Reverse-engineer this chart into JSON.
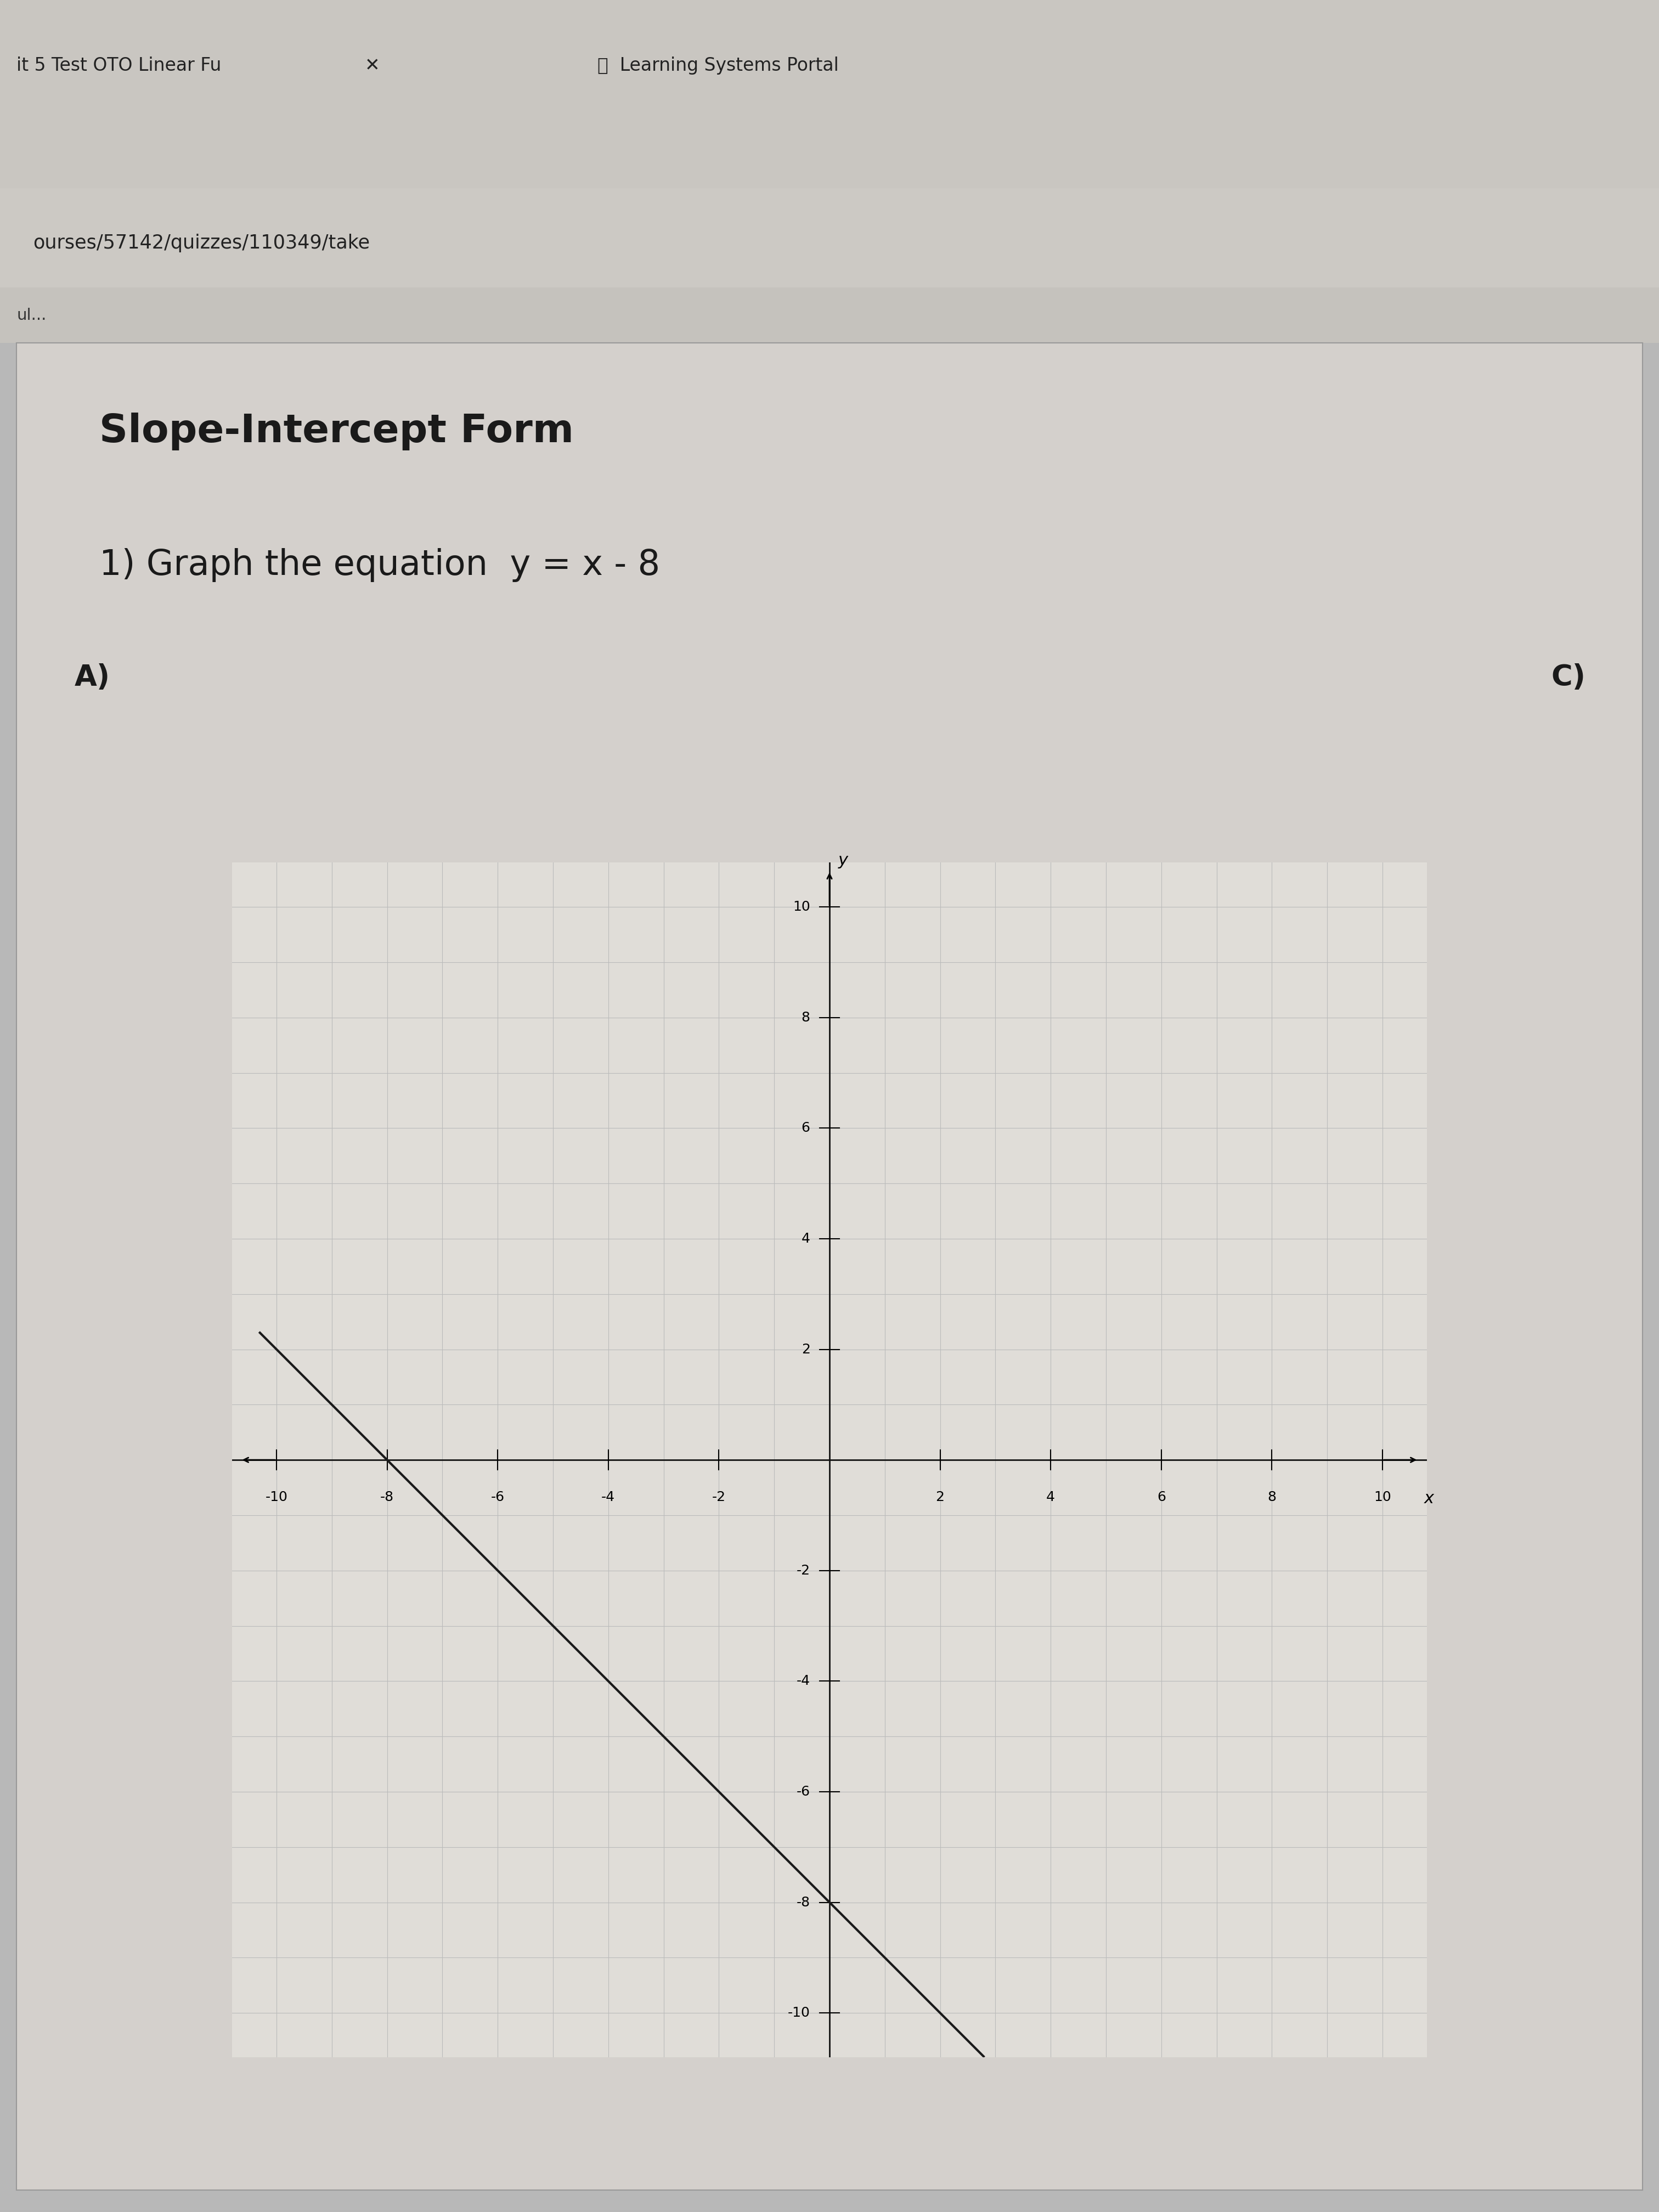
{
  "title": "Slope-Intercept Form",
  "subtitle_part1": "1) Graph the equation  y = x - 8",
  "label_A": "A)",
  "label_C": "C)",
  "slope": -1,
  "intercept": -8,
  "xlim": [
    -10,
    10
  ],
  "ylim": [
    -10,
    10
  ],
  "x_tick_step": 2,
  "y_tick_step": 2,
  "grid_minor_step": 1,
  "line_color": "#1a1a1a",
  "grid_color": "#bbbbbb",
  "axis_color": "#111111",
  "graph_bg": "#e0ddd8",
  "page_bg": "#b8b8b8",
  "content_bg": "#d4d0cc",
  "browser_tab_bg": "#d0cdc8",
  "title_fontsize": 52,
  "subtitle_fontsize": 46,
  "label_fontsize": 38,
  "tick_fontsize": 18,
  "axis_label_fontsize": 22,
  "browser_text_fontsize": 28
}
